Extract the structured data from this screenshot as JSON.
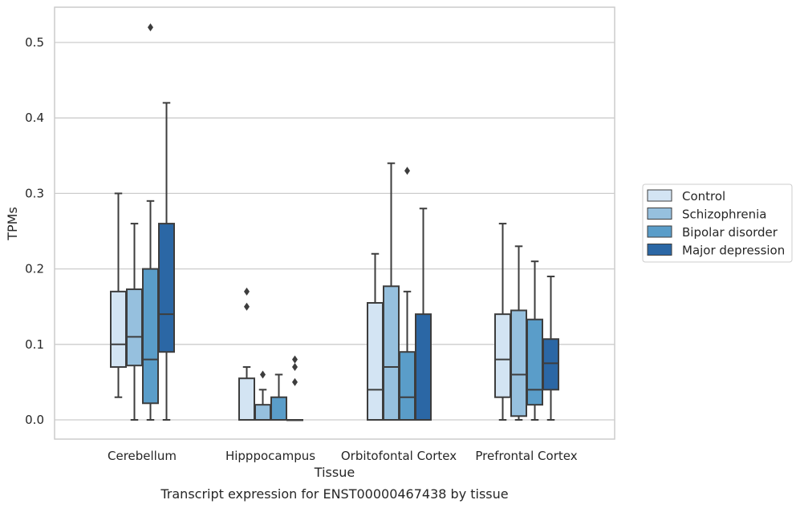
{
  "chart_data": {
    "type": "box",
    "title": "",
    "caption": "Transcript expression for ENST00000467438 by tissue",
    "xlabel": "Tissue",
    "ylabel": "TPMs",
    "ylim": [
      -0.025,
      0.55
    ],
    "yticks": [
      "0.0",
      "0.1",
      "0.2",
      "0.3",
      "0.4",
      "0.5"
    ],
    "ytick_values": [
      0.0,
      0.1,
      0.2,
      0.3,
      0.4,
      0.5
    ],
    "grid": "horizontal",
    "legend_position": "right",
    "categories": [
      "Cerebellum",
      "Hipppocampus",
      "Orbitofontal Cortex",
      "Prefrontal Cortex"
    ],
    "series": [
      {
        "name": "Control",
        "color": "#d3e4f3",
        "boxes": [
          {
            "whislo": 0.03,
            "q1": 0.07,
            "med": 0.1,
            "q3": 0.17,
            "whishi": 0.3,
            "fliers": []
          },
          {
            "whislo": 0.0,
            "q1": 0.0,
            "med": 0.0,
            "q3": 0.055,
            "whishi": 0.07,
            "fliers": [
              0.15,
              0.17
            ]
          },
          {
            "whislo": 0.0,
            "q1": 0.0,
            "med": 0.04,
            "q3": 0.155,
            "whishi": 0.22,
            "fliers": []
          },
          {
            "whislo": 0.0,
            "q1": 0.03,
            "med": 0.08,
            "q3": 0.14,
            "whishi": 0.26,
            "fliers": []
          }
        ]
      },
      {
        "name": "Schizophrenia",
        "color": "#96c0de",
        "boxes": [
          {
            "whislo": 0.0,
            "q1": 0.072,
            "med": 0.11,
            "q3": 0.173,
            "whishi": 0.26,
            "fliers": []
          },
          {
            "whislo": 0.0,
            "q1": 0.0,
            "med": 0.0,
            "q3": 0.02,
            "whishi": 0.04,
            "fliers": [
              0.06
            ]
          },
          {
            "whislo": 0.0,
            "q1": 0.0,
            "med": 0.07,
            "q3": 0.177,
            "whishi": 0.34,
            "fliers": []
          },
          {
            "whislo": 0.0,
            "q1": 0.005,
            "med": 0.06,
            "q3": 0.145,
            "whishi": 0.23,
            "fliers": []
          }
        ]
      },
      {
        "name": "Bipolar disorder",
        "color": "#5a9dc9",
        "boxes": [
          {
            "whislo": 0.0,
            "q1": 0.022,
            "med": 0.08,
            "q3": 0.2,
            "whishi": 0.29,
            "fliers": [
              0.52
            ]
          },
          {
            "whislo": 0.0,
            "q1": 0.0,
            "med": 0.0,
            "q3": 0.03,
            "whishi": 0.06,
            "fliers": []
          },
          {
            "whislo": 0.0,
            "q1": 0.0,
            "med": 0.03,
            "q3": 0.09,
            "whishi": 0.17,
            "fliers": [
              0.33
            ]
          },
          {
            "whislo": 0.0,
            "q1": 0.02,
            "med": 0.04,
            "q3": 0.133,
            "whishi": 0.21,
            "fliers": []
          }
        ]
      },
      {
        "name": "Major depression",
        "color": "#2b67a5",
        "boxes": [
          {
            "whislo": 0.0,
            "q1": 0.09,
            "med": 0.14,
            "q3": 0.26,
            "whishi": 0.42,
            "fliers": []
          },
          {
            "whislo": 0.0,
            "q1": 0.0,
            "med": 0.0,
            "q3": 0.0,
            "whishi": 0.0,
            "fliers": [
              0.05,
              0.07,
              0.08
            ]
          },
          {
            "whislo": 0.0,
            "q1": 0.0,
            "med": 0.0,
            "q3": 0.14,
            "whishi": 0.28,
            "fliers": []
          },
          {
            "whislo": 0.0,
            "q1": 0.04,
            "med": 0.075,
            "q3": 0.107,
            "whishi": 0.19,
            "fliers": []
          }
        ]
      }
    ]
  }
}
